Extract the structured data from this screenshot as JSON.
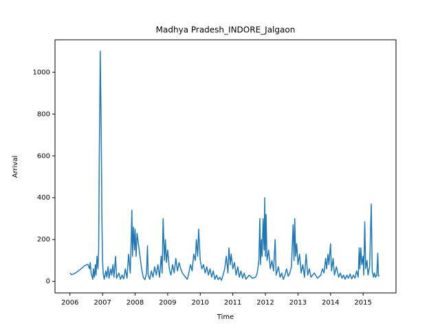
{
  "chart_data": {
    "type": "line",
    "title": "Madhya Pradesh_INDORE_Jalgaon",
    "x_label": "Time",
    "y_label": "Arrival",
    "xlim": [
      2005.54,
      2016.01
    ],
    "xticks": [
      2006,
      2007,
      2008,
      2009,
      2010,
      2011,
      2012,
      2013,
      2014,
      2015
    ],
    "ylim": [
      -55,
      1155
    ],
    "yticks": [
      0,
      200,
      400,
      600,
      800,
      1000
    ],
    "grid": false,
    "series": [
      {
        "color": "#1f77b4",
        "x": [
          2006.0,
          2006.05,
          2006.15,
          2006.3,
          2006.45,
          2006.55,
          2006.6,
          2006.62,
          2006.65,
          2006.7,
          2006.72,
          2006.75,
          2006.78,
          2006.8,
          2006.83,
          2006.86,
          2006.88,
          2006.9,
          2006.93,
          2006.96,
          2006.98,
          2007.0,
          2007.02,
          2007.05,
          2007.1,
          2007.13,
          2007.17,
          2007.2,
          2007.25,
          2007.28,
          2007.32,
          2007.35,
          2007.4,
          2007.43,
          2007.5,
          2007.55,
          2007.6,
          2007.65,
          2007.7,
          2007.75,
          2007.8,
          2007.85,
          2007.88,
          2007.9,
          2007.92,
          2007.95,
          2007.98,
          2008.0,
          2008.03,
          2008.06,
          2008.1,
          2008.15,
          2008.2,
          2008.25,
          2008.3,
          2008.35,
          2008.38,
          2008.4,
          2008.45,
          2008.5,
          2008.55,
          2008.6,
          2008.65,
          2008.7,
          2008.75,
          2008.8,
          2008.83,
          2008.86,
          2008.9,
          2008.93,
          2008.96,
          2009.0,
          2009.05,
          2009.1,
          2009.15,
          2009.2,
          2009.25,
          2009.3,
          2009.35,
          2009.4,
          2009.45,
          2009.5,
          2009.55,
          2009.6,
          2009.65,
          2009.7,
          2009.75,
          2009.8,
          2009.85,
          2009.88,
          2009.92,
          2009.95,
          2010.0,
          2010.05,
          2010.1,
          2010.15,
          2010.2,
          2010.25,
          2010.3,
          2010.35,
          2010.4,
          2010.45,
          2010.5,
          2010.55,
          2010.6,
          2010.65,
          2010.7,
          2010.75,
          2010.8,
          2010.85,
          2010.88,
          2010.92,
          2010.95,
          2011.0,
          2011.05,
          2011.1,
          2011.15,
          2011.2,
          2011.25,
          2011.3,
          2011.35,
          2011.4,
          2011.5,
          2011.6,
          2011.7,
          2011.75,
          2011.8,
          2011.83,
          2011.85,
          2011.88,
          2011.9,
          2011.93,
          2011.96,
          2011.98,
          2012.0,
          2012.02,
          2012.05,
          2012.1,
          2012.15,
          2012.2,
          2012.25,
          2012.3,
          2012.33,
          2012.4,
          2012.45,
          2012.5,
          2012.55,
          2012.6,
          2012.65,
          2012.7,
          2012.75,
          2012.8,
          2012.85,
          2012.88,
          2012.9,
          2012.93,
          2012.96,
          2013.0,
          2013.05,
          2013.1,
          2013.15,
          2013.2,
          2013.25,
          2013.3,
          2013.35,
          2013.4,
          2013.5,
          2013.6,
          2013.7,
          2013.75,
          2013.8,
          2013.85,
          2013.88,
          2013.92,
          2013.95,
          2014.0,
          2014.03,
          2014.08,
          2014.12,
          2014.18,
          2014.25,
          2014.3,
          2014.35,
          2014.4,
          2014.45,
          2014.5,
          2014.55,
          2014.6,
          2014.65,
          2014.7,
          2014.75,
          2014.8,
          2014.85,
          2014.88,
          2014.9,
          2014.93,
          2014.96,
          2015.0,
          2015.02,
          2015.05,
          2015.08,
          2015.12,
          2015.15,
          2015.2,
          2015.25,
          2015.28,
          2015.32,
          2015.35,
          2015.38,
          2015.42,
          2015.45,
          2015.47,
          2015.5
        ],
        "values": [
          40,
          32,
          38,
          55,
          75,
          82,
          60,
          90,
          40,
          10,
          60,
          20,
          80,
          30,
          120,
          60,
          150,
          600,
          1100,
          700,
          300,
          100,
          40,
          10,
          50,
          20,
          70,
          15,
          60,
          30,
          80,
          20,
          120,
          15,
          40,
          10,
          30,
          12,
          60,
          15,
          130,
          40,
          200,
          340,
          120,
          260,
          150,
          250,
          120,
          230,
          180,
          120,
          60,
          20,
          8,
          40,
          170,
          30,
          10,
          50,
          20,
          70,
          30,
          80,
          20,
          120,
          40,
          300,
          100,
          200,
          90,
          150,
          60,
          30,
          80,
          40,
          110,
          50,
          90,
          60,
          40,
          30,
          20,
          10,
          40,
          80,
          50,
          130,
          100,
          200,
          120,
          250,
          100,
          60,
          80,
          40,
          70,
          30,
          60,
          20,
          50,
          10,
          30,
          8,
          20,
          5,
          30,
          60,
          120,
          40,
          160,
          80,
          130,
          60,
          90,
          30,
          70,
          20,
          50,
          15,
          40,
          10,
          30,
          15,
          20,
          40,
          100,
          300,
          80,
          200,
          120,
          300,
          150,
          400,
          120,
          320,
          100,
          150,
          60,
          100,
          50,
          200,
          30,
          70,
          20,
          40,
          10,
          30,
          60,
          25,
          40,
          70,
          270,
          100,
          300,
          120,
          180,
          80,
          130,
          40,
          80,
          20,
          130,
          30,
          60,
          20,
          40,
          15,
          30,
          60,
          40,
          110,
          60,
          130,
          80,
          180,
          50,
          110,
          30,
          70,
          20,
          40,
          15,
          30,
          10,
          30,
          15,
          35,
          12,
          30,
          15,
          50,
          20,
          160,
          60,
          160,
          80,
          120,
          30,
          285,
          60,
          100,
          30,
          70,
          370,
          50,
          20,
          40,
          20,
          30,
          135,
          25,
          30
        ]
      }
    ]
  }
}
